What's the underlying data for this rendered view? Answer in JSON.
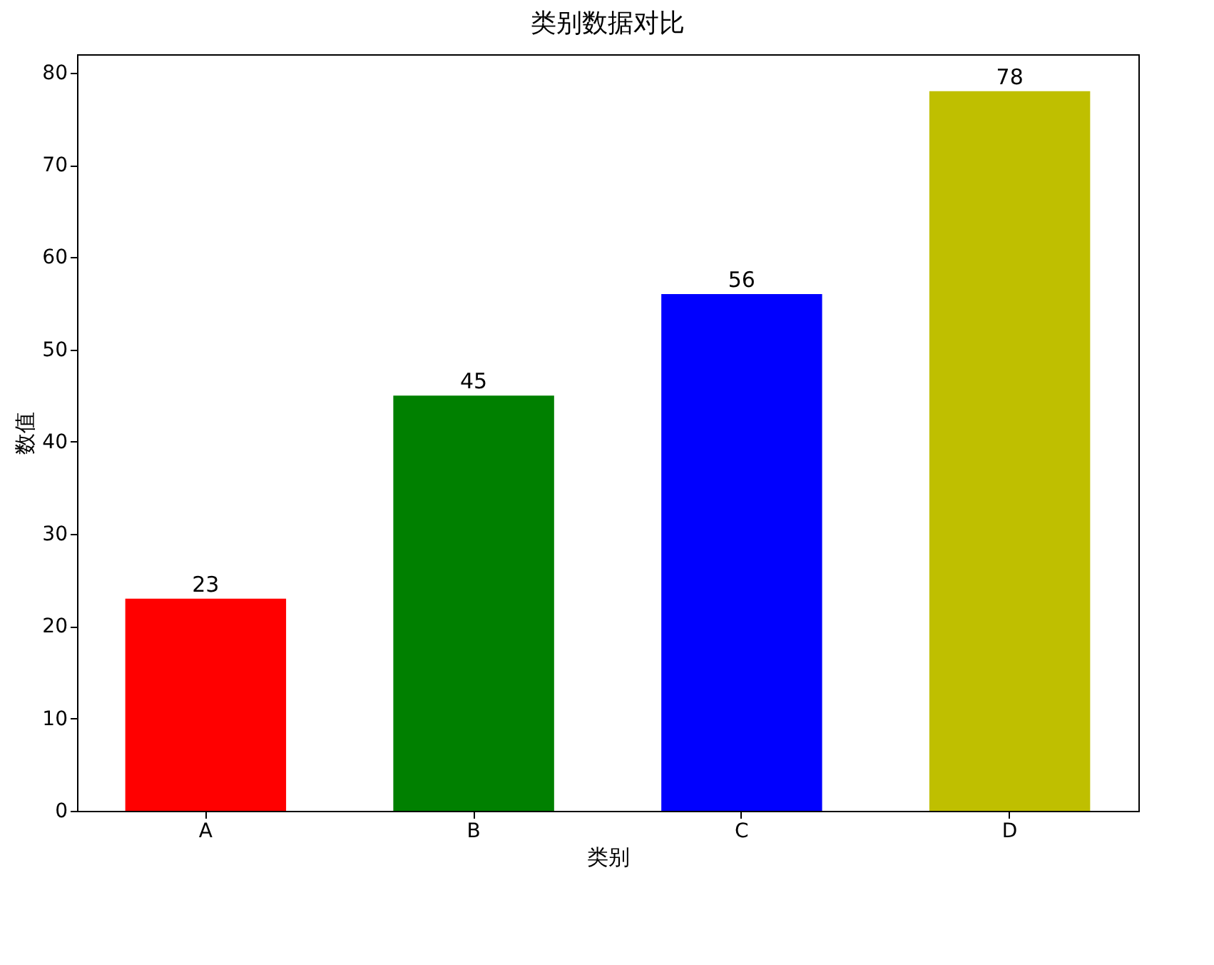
{
  "chart_data": {
    "type": "bar",
    "title": "类别数据对比",
    "xlabel": "类别",
    "ylabel": "数值",
    "categories": [
      "A",
      "B",
      "C",
      "D"
    ],
    "values": [
      23,
      45,
      56,
      78
    ],
    "colors": [
      "#ff0000",
      "#008000",
      "#0000ff",
      "#bfbf00"
    ],
    "ylim": [
      0,
      82
    ],
    "yticks": [
      0,
      10,
      20,
      30,
      40,
      50,
      60,
      70,
      80
    ],
    "data_labels": true,
    "grid": false
  }
}
